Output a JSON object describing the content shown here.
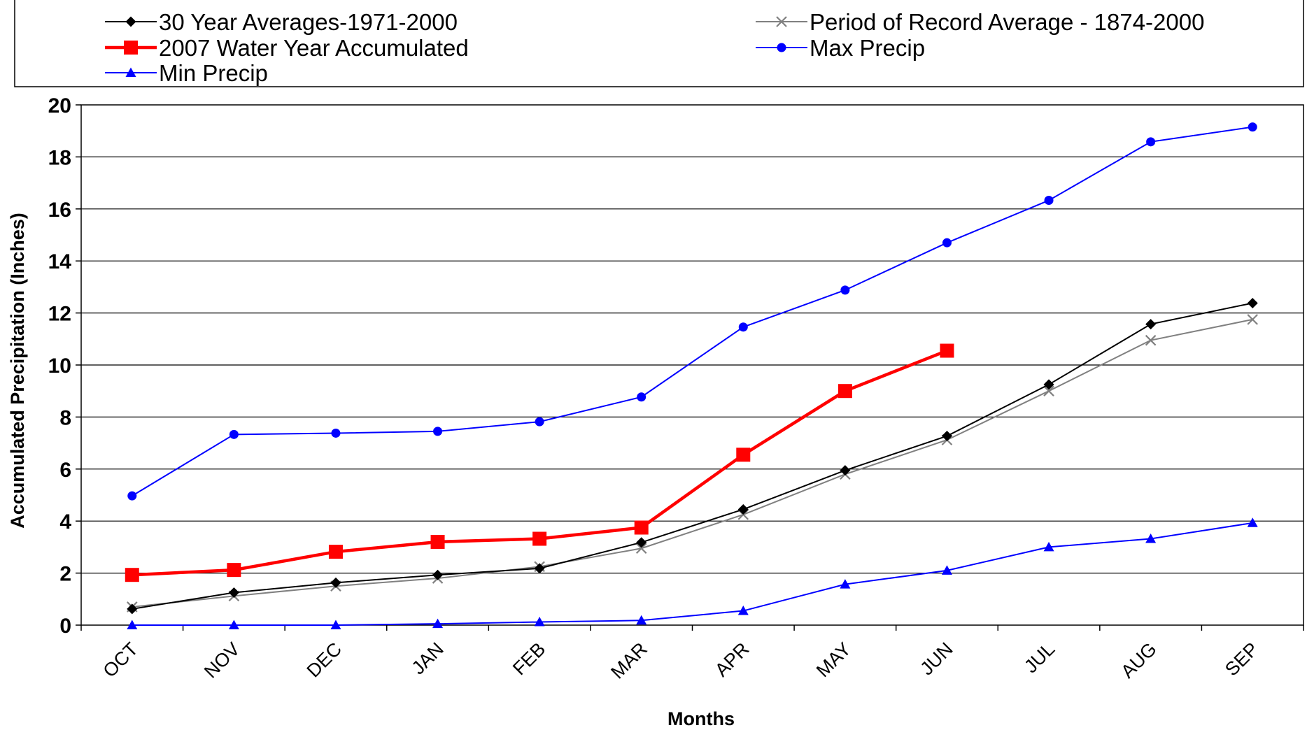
{
  "chart_data": {
    "type": "line",
    "title": "",
    "xlabel": "Months",
    "ylabel": "Accumulated Precipitation (Inches)",
    "ylim": [
      0,
      20
    ],
    "yticks": [
      0,
      2,
      4,
      6,
      8,
      10,
      12,
      14,
      16,
      18,
      20
    ],
    "grid": true,
    "legend_position": "top",
    "categories": [
      "OCT",
      "NOV",
      "DEC",
      "JAN",
      "FEB",
      "MAR",
      "APR",
      "MAY",
      "JUN",
      "JUL",
      "AUG",
      "SEP"
    ],
    "series": [
      {
        "name": "30 Year Averages-1971-2000",
        "color": "#000000",
        "marker": "diamond",
        "values": [
          0.62,
          1.25,
          1.63,
          1.93,
          2.18,
          3.18,
          4.45,
          5.95,
          7.27,
          9.25,
          11.57,
          12.38
        ]
      },
      {
        "name": "Period of Record Average - 1874-2000",
        "color": "#808080",
        "marker": "x",
        "values": [
          0.7,
          1.12,
          1.5,
          1.8,
          2.25,
          2.95,
          4.25,
          5.8,
          7.12,
          9.0,
          10.95,
          11.75
        ]
      },
      {
        "name": "2007 Water Year Accumulated",
        "color": "#ff0000",
        "marker": "square",
        "values": [
          1.93,
          2.12,
          2.82,
          3.2,
          3.32,
          3.75,
          6.55,
          9.0,
          10.55,
          null,
          null,
          null
        ]
      },
      {
        "name": "Max Precip",
        "color": "#0000ff",
        "marker": "circle",
        "values": [
          4.97,
          7.33,
          7.38,
          7.45,
          7.82,
          8.77,
          11.46,
          12.88,
          14.7,
          16.33,
          18.58,
          19.15
        ]
      },
      {
        "name": "Min Precip",
        "color": "#0000ff",
        "marker": "triangle",
        "values": [
          0.0,
          0.0,
          0.0,
          0.05,
          0.12,
          0.18,
          0.55,
          1.57,
          2.1,
          3.0,
          3.32,
          3.93
        ]
      }
    ]
  }
}
